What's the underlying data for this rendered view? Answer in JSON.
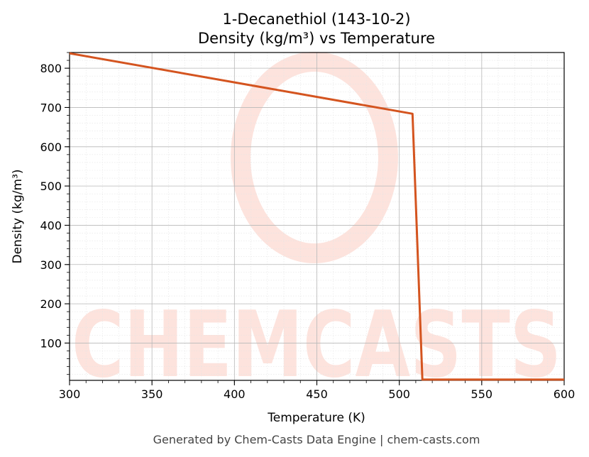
{
  "chart_data": {
    "type": "line",
    "title": "1-Decanethiol (143-10-2)",
    "subtitle": "Density (kg/m³) vs Temperature",
    "xlabel": "Temperature (K)",
    "ylabel": "Density (kg/m³)",
    "xlim": [
      300,
      600
    ],
    "ylim": [
      5,
      840
    ],
    "xticks": [
      300,
      350,
      400,
      450,
      500,
      550,
      600
    ],
    "yticks": [
      100,
      200,
      300,
      400,
      500,
      600,
      700,
      800
    ],
    "grid": true,
    "series": [
      {
        "color": "#d4541f",
        "x": [
          300,
          508,
          514,
          600
        ],
        "y": [
          838,
          684,
          7,
          7
        ]
      }
    ]
  },
  "footer": "Generated by Chem-Casts Data Engine | chem-casts.com",
  "watermark": "CHEMCASTS"
}
